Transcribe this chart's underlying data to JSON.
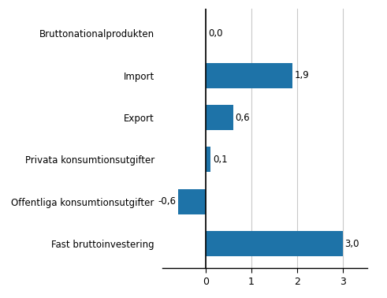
{
  "categories": [
    "Fast bruttoinvestering",
    "Offentliga konsumtionsutgifter",
    "Privata konsumtionsutgifter",
    "Export",
    "Import",
    "Bruttonationalprodukten"
  ],
  "values": [
    3.0,
    -0.6,
    0.1,
    0.6,
    1.9,
    0.0
  ],
  "labels": [
    "3,0",
    "-0,6",
    "0,1",
    "0,6",
    "1,9",
    "0,0"
  ],
  "bar_color": "#1e73a8",
  "xlim": [
    -0.95,
    3.55
  ],
  "xticks": [
    0,
    1,
    2,
    3
  ],
  "xtick_labels": [
    "0",
    "1",
    "2",
    "3"
  ],
  "background_color": "#ffffff",
  "grid_color": "#c8c8c8",
  "label_fontsize": 8.5,
  "tick_fontsize": 9
}
